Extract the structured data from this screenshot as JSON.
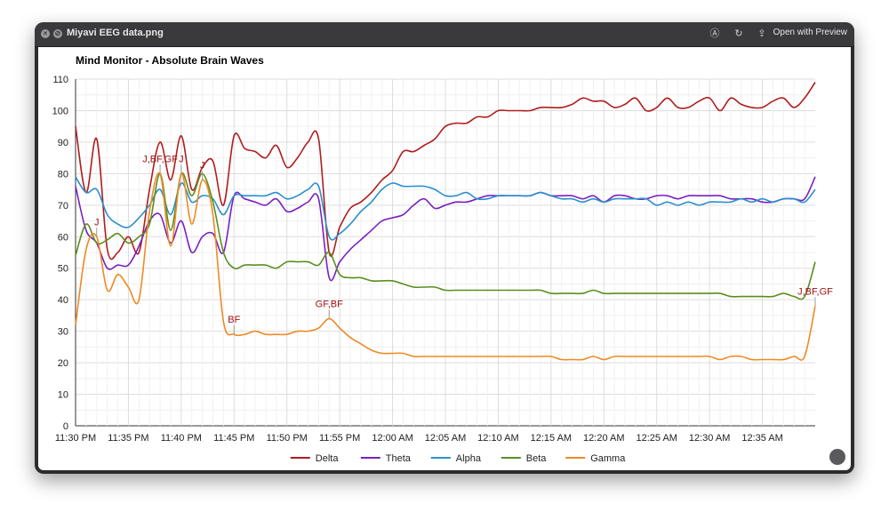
{
  "window": {
    "title": "Miyavi EEG data.png",
    "open_with_label": "Open with Preview",
    "icons": [
      "close-icon",
      "stop-icon",
      "markup-icon",
      "rotate-icon",
      "share-icon",
      "fullscreen-icon"
    ]
  },
  "colors": {
    "Delta": "#b01d1d",
    "Theta": "#7a1fc2",
    "Alpha": "#2a8fcf",
    "Beta": "#5b8e1f",
    "Gamma": "#ee8a24",
    "marker": "#a01414"
  },
  "chart_data": {
    "type": "line",
    "title": "Mind Monitor - Absolute Brain Waves",
    "xlabel": "",
    "ylabel": "",
    "ylim": [
      0,
      110
    ],
    "yticks": [
      0,
      10,
      20,
      30,
      40,
      50,
      60,
      70,
      80,
      90,
      100,
      110
    ],
    "xlim": [
      "23:30",
      "24:40"
    ],
    "x_tick_labels": [
      "11:30 PM",
      "11:35 PM",
      "11:40 PM",
      "11:45 PM",
      "11:50 PM",
      "11:55 PM",
      "12:00 AM",
      "12:05 AM",
      "12:10 AM",
      "12:15 AM",
      "12:20 AM",
      "12:25 AM",
      "12:30 AM",
      "12:35 AM"
    ],
    "grid": true,
    "legend": "bottom",
    "x": [
      "23:30",
      "23:31",
      "23:32",
      "23:33",
      "23:34",
      "23:35",
      "23:36",
      "23:37",
      "23:38",
      "23:39",
      "23:40",
      "23:41",
      "23:42",
      "23:43",
      "23:44",
      "23:45",
      "23:46",
      "23:47",
      "23:48",
      "23:49",
      "23:50",
      "23:51",
      "23:52",
      "23:53",
      "23:54",
      "23:55",
      "23:56",
      "23:57",
      "23:58",
      "23:59",
      "24:00",
      "24:01",
      "24:02",
      "24:03",
      "24:04",
      "24:05",
      "24:06",
      "24:07",
      "24:08",
      "24:09",
      "24:10",
      "24:11",
      "24:12",
      "24:13",
      "24:14",
      "24:15",
      "24:16",
      "24:17",
      "24:18",
      "24:19",
      "24:20",
      "24:21",
      "24:22",
      "24:23",
      "24:24",
      "24:25",
      "24:26",
      "24:27",
      "24:28",
      "24:29",
      "24:30",
      "24:31",
      "24:32",
      "24:33",
      "24:34",
      "24:35",
      "24:36",
      "24:37",
      "24:38",
      "24:39",
      "24:40"
    ],
    "series": [
      {
        "name": "Delta",
        "values": [
          95,
          74,
          91,
          56,
          55,
          60,
          55,
          75,
          90,
          78,
          92,
          75,
          82,
          84,
          70,
          92,
          88,
          87,
          85,
          89,
          82,
          85,
          90,
          91,
          55,
          63,
          69,
          71,
          74,
          78,
          81,
          87,
          87,
          89,
          91,
          95,
          96,
          96,
          98,
          98,
          100,
          100,
          100,
          100,
          101,
          101,
          101,
          102,
          104,
          103,
          103,
          101,
          102,
          104,
          100,
          101,
          104,
          101,
          101,
          103,
          104,
          100,
          104,
          102,
          101,
          101,
          103,
          104,
          101,
          104,
          109
        ]
      },
      {
        "name": "Theta",
        "values": [
          76,
          62,
          58,
          50,
          51,
          51,
          57,
          65,
          67,
          58,
          65,
          55,
          60,
          61,
          55,
          73,
          72,
          71,
          70,
          72,
          68,
          69,
          71,
          72,
          47,
          52,
          56,
          59,
          62,
          65,
          66,
          67,
          70,
          72,
          69,
          70,
          71,
          71,
          72,
          73,
          73,
          73,
          73,
          73,
          74,
          73,
          73,
          73,
          72,
          73,
          71,
          73,
          73,
          72,
          72,
          73,
          73,
          72,
          73,
          73,
          73,
          73,
          72,
          72,
          72,
          71,
          71,
          72,
          72,
          72,
          79
        ]
      },
      {
        "name": "Alpha",
        "values": [
          79,
          74,
          75,
          67,
          64,
          63,
          66,
          70,
          75,
          67,
          77,
          71,
          73,
          72,
          67,
          73,
          73,
          73,
          73,
          74,
          72,
          73,
          75,
          76,
          60,
          61,
          64,
          68,
          71,
          75,
          77,
          76,
          76,
          76,
          75,
          73,
          73,
          74,
          72,
          72,
          73,
          73,
          73,
          73,
          74,
          73,
          72,
          72,
          71,
          72,
          71,
          72,
          72,
          72,
          72,
          70,
          71,
          70,
          71,
          70,
          71,
          71,
          71,
          72,
          71,
          72,
          71,
          72,
          72,
          71,
          75
        ]
      },
      {
        "name": "Beta",
        "values": [
          54,
          64,
          58,
          59,
          61,
          58,
          60,
          64,
          80,
          62,
          80,
          73,
          80,
          71,
          55,
          50,
          51,
          51,
          51,
          50,
          52,
          52,
          52,
          51,
          55,
          48,
          47,
          47,
          46,
          46,
          46,
          45,
          44,
          44,
          44,
          43,
          43,
          43,
          43,
          43,
          43,
          43,
          43,
          43,
          43,
          42,
          42,
          42,
          42,
          43,
          42,
          42,
          42,
          42,
          42,
          42,
          42,
          42,
          42,
          42,
          42,
          42,
          41,
          41,
          41,
          41,
          41,
          42,
          41,
          41,
          52
        ]
      },
      {
        "name": "Gamma",
        "values": [
          32,
          56,
          60,
          43,
          48,
          44,
          40,
          68,
          80,
          57,
          80,
          64,
          78,
          67,
          33,
          29,
          29,
          30,
          29,
          29,
          29,
          30,
          30,
          31,
          34,
          31,
          28,
          26,
          24,
          23,
          23,
          23,
          22,
          22,
          22,
          22,
          22,
          22,
          22,
          22,
          22,
          22,
          22,
          22,
          22,
          22,
          21,
          21,
          21,
          22,
          21,
          22,
          22,
          22,
          22,
          22,
          22,
          22,
          22,
          22,
          22,
          21,
          22,
          22,
          21,
          21,
          21,
          21,
          22,
          22,
          38
        ]
      }
    ],
    "annotations": [
      {
        "text": "J,BF,GF",
        "x": "23:38",
        "series": "Gamma"
      },
      {
        "text": "J",
        "x": "23:32",
        "series": "Gamma"
      },
      {
        "text": "J",
        "x": "23:40",
        "series": "Gamma"
      },
      {
        "text": "J",
        "x": "23:42",
        "series": "Gamma"
      },
      {
        "text": "BF",
        "x": "23:45",
        "series": "Gamma"
      },
      {
        "text": "GF,BF",
        "x": "23:54",
        "series": "Gamma"
      },
      {
        "text": "J,BF,GF",
        "x": "24:40",
        "series": "Gamma"
      }
    ]
  }
}
